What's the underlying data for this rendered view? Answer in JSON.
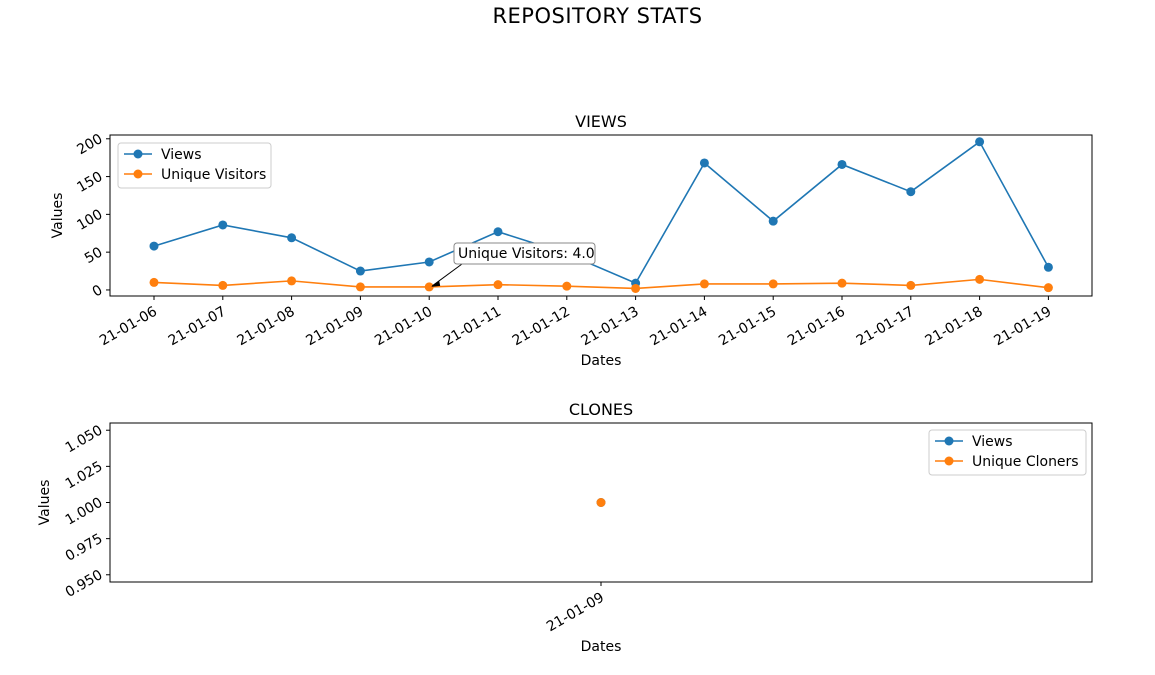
{
  "figure": {
    "title": "REPOSITORY STATS"
  },
  "chart_data": [
    {
      "type": "line",
      "title": "VIEWS",
      "xlabel": "Dates",
      "ylabel": "Values",
      "categories": [
        "21-01-06",
        "21-01-07",
        "21-01-08",
        "21-01-09",
        "21-01-10",
        "21-01-11",
        "21-01-12",
        "21-01-13",
        "21-01-14",
        "21-01-15",
        "21-01-16",
        "21-01-17",
        "21-01-18",
        "21-01-19"
      ],
      "yticks": [
        0,
        50,
        100,
        150,
        200
      ],
      "ylim": [
        -8,
        205
      ],
      "series": [
        {
          "name": "Views",
          "color": "#1f77b4",
          "values": [
            58,
            86,
            69,
            25,
            37,
            77,
            48,
            9,
            168,
            91,
            166,
            130,
            196,
            30
          ]
        },
        {
          "name": "Unique Visitors",
          "color": "#ff7f0e",
          "values": [
            10,
            6,
            12,
            4,
            4,
            7,
            5,
            2,
            8,
            8,
            9,
            6,
            14,
            3
          ]
        }
      ],
      "legend": "upper-left",
      "annotation": {
        "text": "Unique Visitors: 4.0",
        "x": "21-01-10",
        "y": 4.0
      }
    },
    {
      "type": "scatter",
      "title": "CLONES",
      "xlabel": "Dates",
      "ylabel": "Values",
      "categories": [
        "21-01-09"
      ],
      "yticks": [
        "0.950",
        "0.975",
        "1.000",
        "1.025",
        "1.050"
      ],
      "ylim": [
        0.945,
        1.055
      ],
      "series": [
        {
          "name": "Views",
          "color": "#1f77b4",
          "values": [
            1
          ]
        },
        {
          "name": "Unique Cloners",
          "color": "#ff7f0e",
          "values": [
            1
          ]
        }
      ],
      "legend": "upper-right"
    }
  ]
}
